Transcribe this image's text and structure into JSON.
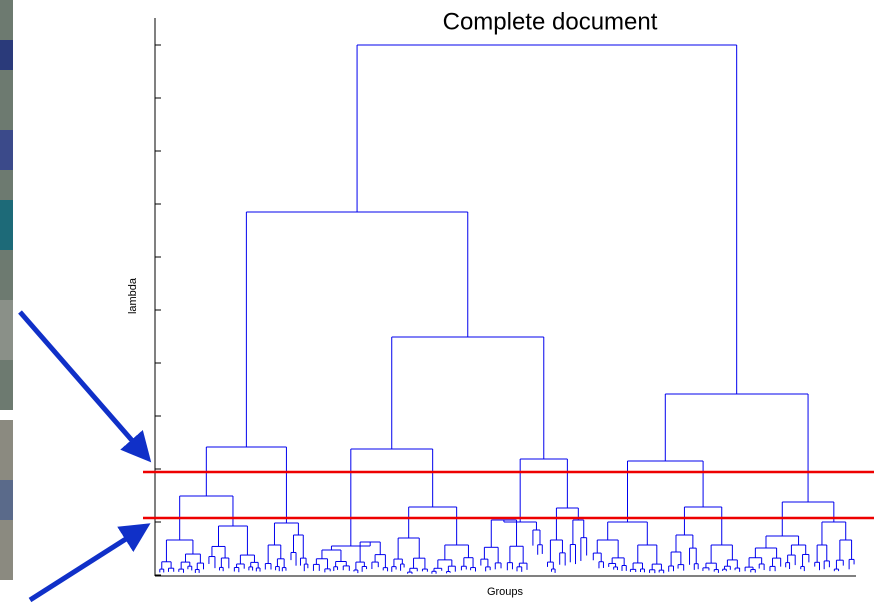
{
  "figure": {
    "title": "Complete document",
    "y_label": "lambda",
    "x_label": "Groups"
  }
}
